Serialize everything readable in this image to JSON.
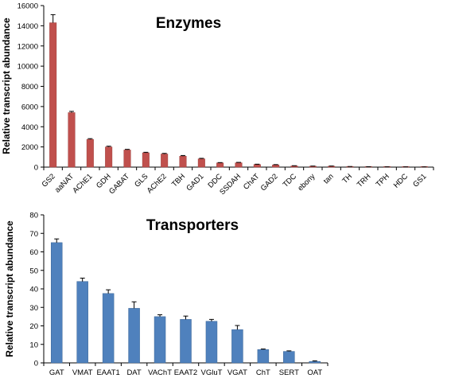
{
  "colors": {
    "enzymes_bar": "#c0504d",
    "enzymes_bar_edge": "#9c3b38",
    "transporters_bar": "#4f81bd",
    "transporters_bar_edge": "#3a6596",
    "axis": "#000000"
  },
  "chart_data": [
    {
      "type": "bar",
      "title": "Enzymes",
      "xlabel": "",
      "ylabel": "Relative transcript abundance",
      "ylim": [
        0,
        16000
      ],
      "yticks": [
        0,
        2000,
        4000,
        6000,
        8000,
        10000,
        12000,
        14000,
        16000
      ],
      "grid": false,
      "categories": [
        "GS2",
        "aaNAT",
        "AChE1",
        "GDH",
        "GABAT",
        "GLS",
        "AChE2",
        "TBH",
        "GAD1",
        "DDC",
        "SSDAH",
        "ChAT",
        "GAD2",
        "TDC",
        "ebony",
        "tan",
        "TH",
        "TRH",
        "TPH",
        "HDC",
        "GS1"
      ],
      "values": [
        14300,
        5400,
        2750,
        2000,
        1700,
        1420,
        1300,
        1080,
        820,
        420,
        430,
        260,
        220,
        120,
        90,
        90,
        50,
        30,
        20,
        15,
        10
      ],
      "errors": [
        800,
        120,
        70,
        70,
        60,
        50,
        60,
        70,
        50,
        30,
        40,
        30,
        30,
        20,
        15,
        20,
        10,
        10,
        5,
        5,
        5
      ]
    },
    {
      "type": "bar",
      "title": "Transporters",
      "xlabel": "",
      "ylabel": "Relative transcript abundance",
      "ylim": [
        0,
        80
      ],
      "yticks": [
        0,
        10,
        20,
        30,
        40,
        50,
        60,
        70,
        80
      ],
      "grid": false,
      "categories": [
        "GAT",
        "VMAT",
        "EAAT1",
        "DAT",
        "VAChT",
        "EAAT2",
        "VGluT",
        "VGAT",
        "ChT",
        "SERT",
        "OAT"
      ],
      "values": [
        65,
        44,
        37.5,
        29.5,
        25,
        23.5,
        22.5,
        18,
        7.2,
        6.2,
        0.8
      ],
      "errors": [
        2,
        1.8,
        2,
        3.5,
        1,
        1.8,
        1,
        2.2,
        0.3,
        0.3,
        0.3
      ]
    }
  ]
}
